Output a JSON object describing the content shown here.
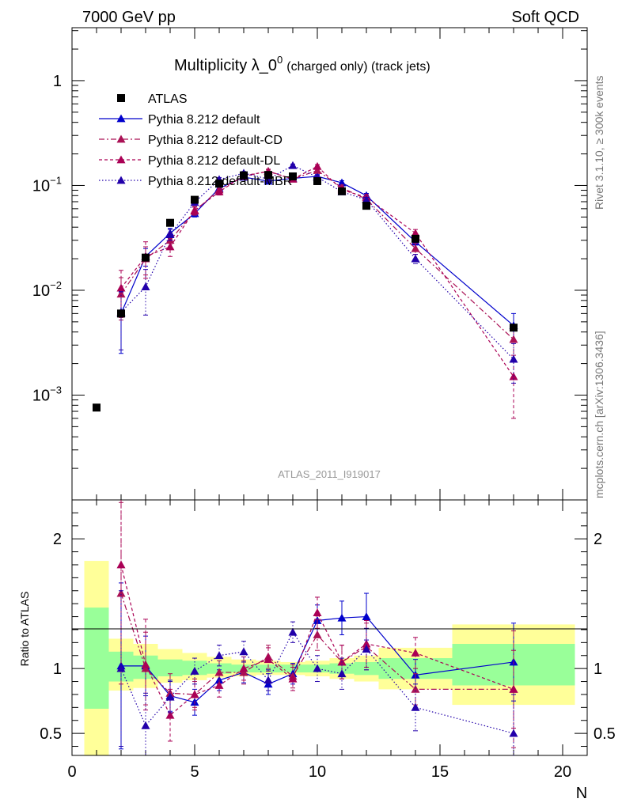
{
  "header": {
    "left": "7000 GeV pp",
    "right": "Soft QCD"
  },
  "side_text": {
    "top": "Rivet 3.1.10, ≥ 300k events",
    "bottom": "mcplots.cern.ch [arXiv:1306.3436]"
  },
  "watermark": "ATLAS_2011_I919017",
  "chart_data": {
    "type": "scatter",
    "title": "Multiplicity λ_0",
    "title_sup": "0",
    "title_suffix": "(charged only) (track jets)",
    "xlabel": "N",
    "ylabel_ratio": "Ratio to ATLAS",
    "xlim": [
      0,
      21
    ],
    "ylim_main": [
      0.0001,
      3.2
    ],
    "yscale_main": "log",
    "ylim_ratio": [
      0.33,
      2.3
    ],
    "x_ticks": [
      0,
      5,
      10,
      15,
      20
    ],
    "x_tick_labels": [
      "0",
      "5",
      "10",
      "15",
      "20"
    ],
    "y_ticks_main": [
      0.001,
      0.01,
      0.1,
      1
    ],
    "y_tick_labels_main": [
      {
        "base": "10",
        "exp": "−3"
      },
      {
        "base": "10",
        "exp": "−2"
      },
      {
        "base": "10",
        "exp": "−1"
      },
      {
        "base": "1",
        "exp": ""
      }
    ],
    "y_ticks_ratio": [
      0.5,
      1,
      2
    ],
    "y_tick_labels_ratio": [
      "0.5",
      "1",
      "2"
    ],
    "legend_position": "top-left",
    "data": {
      "name": "ATLAS",
      "x": [
        1,
        2,
        3,
        4,
        5,
        6,
        7,
        8,
        9,
        10,
        11,
        12,
        14,
        18
      ],
      "y": [
        0.00076,
        0.006,
        0.0205,
        0.044,
        0.073,
        0.104,
        0.125,
        0.126,
        0.122,
        0.11,
        0.088,
        0.064,
        0.031,
        0.0044
      ]
    },
    "bands": [
      {
        "x0": 0.5,
        "x1": 1.5,
        "yellow": [
          0.33,
          1.83
        ],
        "green": [
          0.69,
          1.47
        ]
      },
      {
        "x0": 1.5,
        "x1": 2.5,
        "yellow": [
          0.83,
          1.23
        ],
        "green": [
          0.9,
          1.13
        ]
      },
      {
        "x0": 2.5,
        "x1": 3.5,
        "yellow": [
          0.85,
          1.19
        ],
        "green": [
          0.92,
          1.1
        ]
      },
      {
        "x0": 3.5,
        "x1": 4.5,
        "yellow": [
          0.89,
          1.15
        ],
        "green": [
          0.94,
          1.07
        ]
      },
      {
        "x0": 4.5,
        "x1": 5.5,
        "yellow": [
          0.91,
          1.12
        ],
        "green": [
          0.95,
          1.06
        ]
      },
      {
        "x0": 5.5,
        "x1": 6.5,
        "yellow": [
          0.93,
          1.09
        ],
        "green": [
          0.96,
          1.04
        ]
      },
      {
        "x0": 6.5,
        "x1": 7.5,
        "yellow": [
          0.94,
          1.07
        ],
        "green": [
          0.97,
          1.03
        ]
      },
      {
        "x0": 7.5,
        "x1": 8.5,
        "yellow": [
          0.95,
          1.06
        ],
        "green": [
          0.97,
          1.03
        ]
      },
      {
        "x0": 8.5,
        "x1": 9.5,
        "yellow": [
          0.95,
          1.05
        ],
        "green": [
          0.97,
          1.03
        ]
      },
      {
        "x0": 9.5,
        "x1": 10.5,
        "yellow": [
          0.94,
          1.06
        ],
        "green": [
          0.97,
          1.03
        ]
      },
      {
        "x0": 10.5,
        "x1": 11.5,
        "yellow": [
          0.92,
          1.08
        ],
        "green": [
          0.96,
          1.04
        ]
      },
      {
        "x0": 11.5,
        "x1": 12.5,
        "yellow": [
          0.9,
          1.1
        ],
        "green": [
          0.95,
          1.05
        ]
      },
      {
        "x0": 12.5,
        "x1": 15.5,
        "yellow": [
          0.84,
          1.16
        ],
        "green": [
          0.92,
          1.08
        ]
      },
      {
        "x0": 15.5,
        "x1": 20.5,
        "yellow": [
          0.72,
          1.34
        ],
        "green": [
          0.87,
          1.19
        ]
      }
    ],
    "series": [
      {
        "name": "Pythia 8.212 default",
        "color": "#0000cc",
        "dash": "",
        "x": [
          2,
          3,
          4,
          5,
          6,
          7,
          8,
          9,
          10,
          11,
          12,
          14,
          18
        ],
        "y": [
          0.006,
          0.021,
          0.035,
          0.054,
          0.094,
          0.12,
          0.11,
          0.117,
          0.122,
          0.106,
          0.08,
          0.029,
          0.0046
        ],
        "yerr": [
          0.0035,
          0.004,
          0.004,
          0.004,
          0.005,
          0.005,
          0.005,
          0.005,
          0.005,
          0.005,
          0.004,
          0.002,
          0.0014
        ],
        "ratio": [
          1.02,
          1.02,
          0.79,
          0.74,
          0.91,
          0.97,
          0.88,
          0.96,
          1.37,
          1.39,
          1.4,
          0.95,
          1.05
        ],
        "ratio_err": [
          0.64,
          0.23,
          0.12,
          0.1,
          0.08,
          0.08,
          0.08,
          0.08,
          0.12,
          0.13,
          0.18,
          0.12,
          0.3
        ]
      },
      {
        "name": "Pythia 8.212 default-CD",
        "color": "#aa1155",
        "dash": "7,3,2,3",
        "x": [
          2,
          3,
          4,
          5,
          6,
          7,
          8,
          9,
          10,
          11,
          12,
          14,
          18
        ],
        "y": [
          0.0092,
          0.02,
          0.03,
          0.057,
          0.091,
          0.122,
          0.137,
          0.115,
          0.139,
          0.095,
          0.074,
          0.025,
          0.0034
        ],
        "yerr": [
          0.004,
          0.006,
          0.005,
          0.005,
          0.006,
          0.006,
          0.006,
          0.006,
          0.006,
          0.006,
          0.005,
          0.003,
          0.0013
        ],
        "ratio": [
          1.58,
          1.0,
          0.81,
          0.8,
          0.97,
          0.97,
          1.09,
          0.94,
          1.26,
          1.05,
          1.17,
          0.84,
          0.84
        ],
        "ratio_err": [
          0.7,
          0.28,
          0.15,
          0.1,
          0.09,
          0.09,
          0.09,
          0.09,
          0.12,
          0.13,
          0.18,
          0.12,
          0.45
        ]
      },
      {
        "name": "Pythia 8.212 default-DL",
        "color": "#aa0055",
        "dash": "4,3",
        "x": [
          2,
          3,
          4,
          5,
          6,
          7,
          8,
          9,
          10,
          11,
          12,
          14,
          18
        ],
        "y": [
          0.0105,
          0.021,
          0.026,
          0.058,
          0.087,
          0.124,
          0.136,
          0.115,
          0.152,
          0.091,
          0.077,
          0.035,
          0.0015
        ],
        "yerr": [
          0.005,
          0.008,
          0.005,
          0.005,
          0.006,
          0.006,
          0.006,
          0.006,
          0.006,
          0.006,
          0.005,
          0.003,
          0.0009
        ],
        "ratio": [
          1.8,
          1.03,
          0.64,
          0.8,
          0.87,
          1.0,
          1.07,
          0.92,
          1.43,
          1.05,
          1.19,
          1.12,
          0.84
        ],
        "ratio_err": [
          0.8,
          0.35,
          0.2,
          0.12,
          0.09,
          0.09,
          0.09,
          0.09,
          0.12,
          0.13,
          0.18,
          0.12,
          0.3
        ]
      },
      {
        "name": "Pythia 8.212 default-MBR",
        "color": "#2200aa",
        "dash": "1.5,2.5",
        "x": [
          2,
          3,
          4,
          5,
          6,
          7,
          8,
          9,
          10,
          11,
          12,
          14,
          18
        ],
        "y": [
          0.0062,
          0.0108,
          0.034,
          0.069,
          0.114,
          0.131,
          0.115,
          0.155,
          0.12,
          0.087,
          0.073,
          0.02,
          0.0022
        ],
        "yerr": [
          0.0035,
          0.005,
          0.004,
          0.004,
          0.005,
          0.005,
          0.005,
          0.005,
          0.005,
          0.005,
          0.004,
          0.002,
          0.0009
        ],
        "ratio": [
          1.0,
          0.56,
          0.78,
          0.98,
          1.1,
          1.13,
          0.91,
          1.28,
          1.0,
          0.96,
          1.15,
          0.7,
          0.5
        ],
        "ratio_err": [
          0.6,
          0.25,
          0.12,
          0.1,
          0.08,
          0.08,
          0.08,
          0.08,
          0.1,
          0.12,
          0.16,
          0.18,
          0.3
        ]
      }
    ]
  }
}
